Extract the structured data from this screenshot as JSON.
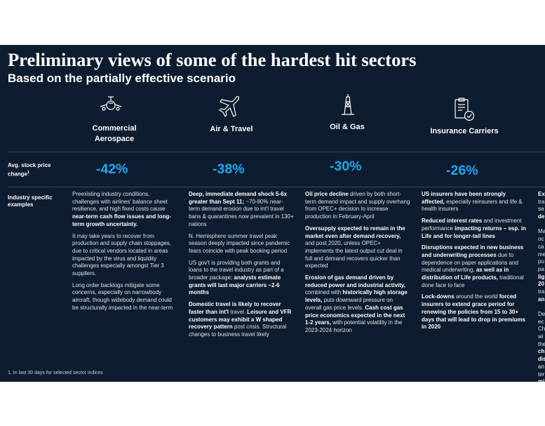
{
  "title": "Preliminary views of some of the hardest hit sectors",
  "subtitle": "Based on the partially effective scenario",
  "row_labels": {
    "stock": "Avg. stock price change",
    "stock_sup": "1",
    "examples": "Industry specific examples"
  },
  "footnote": "1.   In last 30 days for selected sector indices",
  "sectors": [
    {
      "name": "Commercial Aerospace",
      "icon": "aircraft-front-icon",
      "stock_change": "-42%",
      "paragraphs": [
        [
          {
            "t": "Preexisting industry conditions, challenges with airlines' balance sheet resilience, and high fixed costs cause ",
            "b": false
          },
          {
            "t": "near-term cash flow issues and long-term growth uncertainty.",
            "b": true
          }
        ],
        [
          {
            "t": "It may take years to recover from production and supply chain stoppages, due to critical vendors located in areas impacted by the virus and liquidity challenges especially amongst Tier 3 suppliers.",
            "b": false
          }
        ],
        [
          {
            "t": "Long order backlogs mitigate some concerns, especially on narrowbody aircraft, though widebody demand could be structurally impacted in the near-term",
            "b": false
          }
        ]
      ]
    },
    {
      "name": "Air & Travel",
      "icon": "airplane-icon",
      "stock_change": "-38%",
      "paragraphs": [
        [
          {
            "t": "Deep, immediate demand shock 5-6x greater than Sept 11;",
            "b": true
          },
          {
            "t": " ~70-80% near-term demand erosion due to int'l travel bans & quarantines now prevalent in 130+ nations",
            "b": false
          }
        ],
        [
          {
            "t": "N. Hemisphere summer travel peak season deeply impacted since pandemic fears coincide with peak booking period",
            "b": false
          }
        ],
        [
          {
            "t": "US gov't is providing both grants and loans to the travel industry as part of a broader package; ",
            "b": false
          },
          {
            "t": "analysts estimate grants will last major carriers ~2-6 months",
            "b": true
          }
        ],
        [
          {
            "t": "Domestic travel is likely to recover faster than int'l",
            "b": true
          },
          {
            "t": " travel. ",
            "b": false
          },
          {
            "t": "Leisure and VFR customers may exhibit a W shaped recovery pattern",
            "b": true
          },
          {
            "t": " post crisis. Structural changes to business travel likely",
            "b": false
          }
        ]
      ]
    },
    {
      "name": "Oil & Gas",
      "icon": "oil-rig-icon",
      "stock_change": "-30%",
      "paragraphs": [
        [
          {
            "t": "Oil price decline",
            "b": true
          },
          {
            "t": " driven by both short-term demand impact and supply overhang from OPEC+ decision to increase production in February-April",
            "b": false
          }
        ],
        [
          {
            "t": "Oversupply expected to remain in the market even after demand recovery,",
            "b": true
          },
          {
            "t": " and post 2020, unless OPEC+ implements the latest output cut deal in full and demand recovers quicker than expected",
            "b": false
          }
        ],
        [
          {
            "t": "Erosion of gas demand driven by reduced power and industrial activity,",
            "b": true
          },
          {
            "t": " combined with ",
            "b": false
          },
          {
            "t": "historically high storage levels,",
            "b": true
          },
          {
            "t": " puts downward pressure on overall gas price levels. ",
            "b": false
          },
          {
            "t": "Cash cost gas price economics expected in the next 1-2 years,",
            "b": true
          },
          {
            "t": " with potential volatility in the 2023-2024 horizon",
            "b": false
          }
        ]
      ]
    },
    {
      "name": "Insurance Carriers",
      "icon": "insurance-document-icon",
      "stock_change": "-26%",
      "paragraphs": [
        [
          {
            "t": "US insurers have been strongly affected,",
            "b": true
          },
          {
            "t": " especially reinsurers and life & health insurers",
            "b": false
          }
        ],
        [
          {
            "t": "Reduced interest rates",
            "b": true
          },
          {
            "t": " and investment performance ",
            "b": false
          },
          {
            "t": "impacting returns – esp. in Life and for longer-tail lines",
            "b": true
          }
        ],
        [
          {
            "t": "Disruptions expected in new business and underwriting processes",
            "b": true
          },
          {
            "t": " due to dependence on paper applications and medical underwriting, ",
            "b": false
          },
          {
            "t": "as well as in distribution of Life products,",
            "b": true
          },
          {
            "t": " traditional done face to face",
            "b": false
          }
        ],
        [
          {
            "t": "Lock-downs",
            "b": true
          },
          {
            "t": " around the world ",
            "b": false
          },
          {
            "t": "forced insurers to extend grace period for renewing the policies from 15 to 30+ days that will lead to drop in premiums in 2020",
            "b": true
          }
        ]
      ]
    }
  ],
  "clipped_column": [
    {
      "t": "Ex",
      "b": true
    },
    {
      "t": "tra",
      "b": false
    },
    {
      "t": "sa",
      "b": false
    },
    {
      "t": "de",
      "b": true
    },
    {
      "t": "",
      "b": false
    },
    {
      "t": "Ma",
      "b": false
    },
    {
      "t": "oc",
      "b": false
    },
    {
      "t": "ca",
      "b": false
    },
    {
      "t": "me",
      "b": false
    },
    {
      "t": "pu",
      "b": false
    },
    {
      "t": "pa",
      "b": false
    },
    {
      "t": "lig",
      "b": true
    },
    {
      "t": "20",
      "b": true
    },
    {
      "t": "tra",
      "b": false
    },
    {
      "t": "an",
      "b": true
    },
    {
      "t": "",
      "b": false
    },
    {
      "t": "De",
      "b": false
    },
    {
      "t": "ec",
      "b": false
    },
    {
      "t": "Ch",
      "b": false
    },
    {
      "t": "wi",
      "b": false
    },
    {
      "t": "the",
      "b": false
    },
    {
      "t": "ch",
      "b": true
    },
    {
      "t": "dis",
      "b": true
    },
    {
      "t": "an",
      "b": false
    },
    {
      "t": "ter",
      "b": false
    },
    {
      "t": "mi",
      "b": true
    }
  ]
}
